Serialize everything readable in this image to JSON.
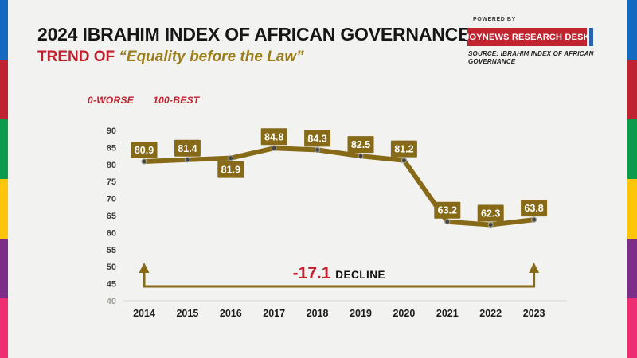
{
  "page": {
    "background": "#f2f3f0"
  },
  "edge_stripes": {
    "colors": [
      "#1669c0",
      "#bf2231",
      "#0c9a4c",
      "#fec60a",
      "#7b2d88",
      "#ee2e71"
    ]
  },
  "header": {
    "title": "2024 IBRAHIM INDEX OF AFRICAN GOVERNANCE:",
    "subtitle_prefix": "TREND OF ",
    "subtitle_quote": "“Equality before the Law”",
    "accent_red": "#c1202f",
    "accent_gold": "#9c7d1c"
  },
  "attribution": {
    "powered_by": "POWERED BY",
    "badge_label": "JOYNEWS RESEARCH DESK",
    "badge_color": "#c2242f",
    "accent_bar_color": "#2b62ae",
    "source_line1": "SOURCE: IBRAHIM INDEX OF AFRICAN",
    "source_line2": "GOVERNANCE"
  },
  "scale_note": {
    "worse": "0-WORSE",
    "best": "100-BEST"
  },
  "chart_data": {
    "type": "line",
    "title": "Trend of Equality before the Law, Ibrahim Index of African Governance",
    "categories": [
      "2014",
      "2015",
      "2016",
      "2017",
      "2018",
      "2019",
      "2020",
      "2021",
      "2022",
      "2023"
    ],
    "values": [
      80.9,
      81.4,
      81.9,
      84.8,
      84.3,
      82.5,
      81.2,
      63.2,
      62.3,
      63.8
    ],
    "ylim": [
      40,
      90
    ],
    "ytick_step": 5,
    "grid": false,
    "legend": false,
    "label_below_indices": [
      2
    ],
    "annotation": {
      "value": "-17.1",
      "label": "DECLINE",
      "from": "2014",
      "to": "2023"
    },
    "colors": {
      "line": "#876a17",
      "label_box": "#876a17",
      "label_text": "#ffffff",
      "marker_fill": "#46443c",
      "marker_ring": "#9a9a94",
      "axis_text": "#3d3d3d",
      "axis_text_bottom": "#a0a099",
      "year_text": "#1c1c1c",
      "baseline": "#dfdfda",
      "bracket": "#876a17",
      "annotation_value": "#c31f2e",
      "annotation_label": "#111111"
    }
  }
}
